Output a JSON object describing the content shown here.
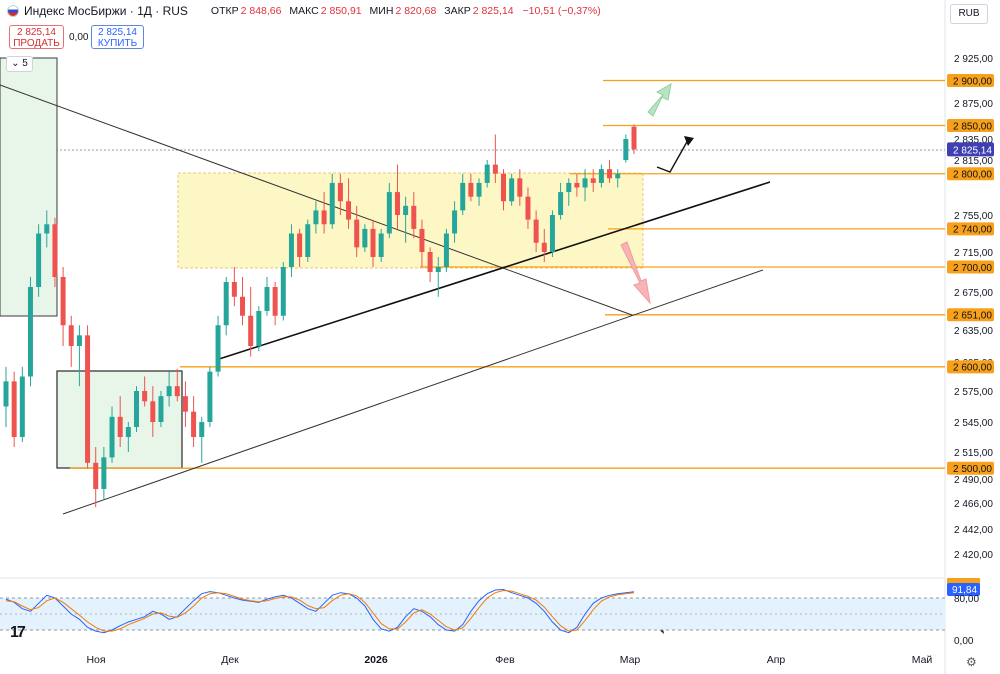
{
  "header": {
    "title": "Индекс МосБиржи · 1Д · RUS",
    "open_label": "ОТКР",
    "open": "2 848,66",
    "high_label": "МАКС",
    "high": "2 850,91",
    "low_label": "МИН",
    "low": "2 820,68",
    "close_label": "ЗАКР",
    "close": "2 825,14",
    "change": "−10,51 (−0,37%)"
  },
  "trade": {
    "sell_price": "2 825,14",
    "sell_label": "ПРОДАТЬ",
    "spread": "0,00",
    "buy_price": "2 825,14",
    "buy_label": "КУПИТЬ"
  },
  "toolbar": {
    "collapse_count": "5",
    "currency": "RUB"
  },
  "colors": {
    "up": "#26a69a",
    "down": "#ef5350",
    "level": "#f7a01c",
    "zone": "#fdf7c6",
    "stoch_k": "#2962ff",
    "stoch_d": "#f57c00"
  },
  "chart_data": {
    "type": "candlestick",
    "price_axis": {
      "ticks": [
        2925,
        2875,
        2835,
        2815,
        2755,
        2715,
        2675,
        2635,
        2605,
        2575,
        2545,
        2515,
        2490,
        2466,
        2442,
        2420
      ],
      "tick_labels": [
        "2 925,00",
        "2 875,00",
        "2 835,00",
        "2 815,00",
        "2 755,00",
        "2 715,00",
        "2 675,00",
        "2 635,00",
        "2 605,00",
        "2 575,00",
        "2 545,00",
        "2 515,00",
        "2 490,00",
        "2 466,00",
        "2 442,00",
        "2 420,00"
      ],
      "ylim": [
        2400,
        2950
      ]
    },
    "time_axis": {
      "labels": [
        "Ноя",
        "Дек",
        "2026",
        "Фев",
        "Мар",
        "Апр",
        "Май"
      ]
    },
    "levels": [
      {
        "value": 2900,
        "label": "2 900,00"
      },
      {
        "value": 2850,
        "label": "2 850,00"
      },
      {
        "value": 2800,
        "label": "2 800,00"
      },
      {
        "value": 2740,
        "label": "2 740,00"
      },
      {
        "value": 2700,
        "label": "2 700,00"
      },
      {
        "value": 2651,
        "label": "2 651,00"
      },
      {
        "value": 2600,
        "label": "2 600,00"
      },
      {
        "value": 2500,
        "label": "2 500,00"
      }
    ],
    "last_price": {
      "value": 2825.14,
      "label": "2 825,14"
    },
    "candles": [
      [
        2560,
        2600,
        2540,
        2585
      ],
      [
        2585,
        2595,
        2520,
        2530
      ],
      [
        2530,
        2600,
        2525,
        2590
      ],
      [
        2590,
        2690,
        2580,
        2680
      ],
      [
        2680,
        2745,
        2670,
        2735
      ],
      [
        2735,
        2760,
        2720,
        2745
      ],
      [
        2745,
        2752,
        2680,
        2690
      ],
      [
        2690,
        2700,
        2620,
        2640
      ],
      [
        2640,
        2650,
        2600,
        2620
      ],
      [
        2620,
        2640,
        2580,
        2630
      ],
      [
        2630,
        2640,
        2500,
        2505
      ],
      [
        2505,
        2520,
        2462,
        2480
      ],
      [
        2480,
        2520,
        2470,
        2510
      ],
      [
        2510,
        2560,
        2505,
        2550
      ],
      [
        2550,
        2570,
        2520,
        2530
      ],
      [
        2530,
        2545,
        2515,
        2540
      ],
      [
        2540,
        2580,
        2535,
        2575
      ],
      [
        2575,
        2590,
        2560,
        2565
      ],
      [
        2565,
        2580,
        2530,
        2545
      ],
      [
        2545,
        2575,
        2540,
        2570
      ],
      [
        2570,
        2595,
        2560,
        2580
      ],
      [
        2580,
        2598,
        2565,
        2570
      ],
      [
        2570,
        2585,
        2540,
        2555
      ],
      [
        2555,
        2570,
        2520,
        2530
      ],
      [
        2530,
        2550,
        2505,
        2545
      ],
      [
        2545,
        2600,
        2540,
        2595
      ],
      [
        2595,
        2650,
        2590,
        2640
      ],
      [
        2640,
        2690,
        2630,
        2685
      ],
      [
        2685,
        2700,
        2660,
        2670
      ],
      [
        2670,
        2690,
        2640,
        2650
      ],
      [
        2650,
        2680,
        2610,
        2620
      ],
      [
        2620,
        2660,
        2615,
        2655
      ],
      [
        2655,
        2690,
        2650,
        2680
      ],
      [
        2680,
        2685,
        2640,
        2650
      ],
      [
        2650,
        2705,
        2645,
        2700
      ],
      [
        2700,
        2745,
        2690,
        2735
      ],
      [
        2735,
        2740,
        2700,
        2710
      ],
      [
        2710,
        2750,
        2705,
        2745
      ],
      [
        2745,
        2770,
        2735,
        2760
      ],
      [
        2760,
        2780,
        2735,
        2745
      ],
      [
        2745,
        2800,
        2740,
        2790
      ],
      [
        2790,
        2800,
        2755,
        2770
      ],
      [
        2770,
        2795,
        2740,
        2750
      ],
      [
        2750,
        2765,
        2710,
        2720
      ],
      [
        2720,
        2745,
        2715,
        2740
      ],
      [
        2740,
        2750,
        2700,
        2710
      ],
      [
        2710,
        2740,
        2705,
        2735
      ],
      [
        2735,
        2790,
        2730,
        2780
      ],
      [
        2780,
        2810,
        2740,
        2755
      ],
      [
        2755,
        2775,
        2725,
        2765
      ],
      [
        2765,
        2780,
        2730,
        2740
      ],
      [
        2740,
        2750,
        2700,
        2715
      ],
      [
        2715,
        2720,
        2685,
        2695
      ],
      [
        2695,
        2710,
        2670,
        2700
      ],
      [
        2700,
        2740,
        2695,
        2735
      ],
      [
        2735,
        2770,
        2725,
        2760
      ],
      [
        2760,
        2800,
        2755,
        2790
      ],
      [
        2790,
        2800,
        2770,
        2775
      ],
      [
        2775,
        2795,
        2765,
        2790
      ],
      [
        2790,
        2815,
        2785,
        2810
      ],
      [
        2810,
        2840,
        2790,
        2800
      ],
      [
        2800,
        2805,
        2760,
        2770
      ],
      [
        2770,
        2800,
        2765,
        2795
      ],
      [
        2795,
        2805,
        2765,
        2775
      ],
      [
        2775,
        2785,
        2740,
        2750
      ],
      [
        2750,
        2760,
        2715,
        2725
      ],
      [
        2725,
        2740,
        2705,
        2715
      ],
      [
        2715,
        2760,
        2710,
        2755
      ],
      [
        2755,
        2790,
        2750,
        2780
      ],
      [
        2780,
        2795,
        2765,
        2790
      ],
      [
        2790,
        2800,
        2775,
        2785
      ],
      [
        2785,
        2805,
        2770,
        2795
      ],
      [
        2795,
        2805,
        2780,
        2790
      ],
      [
        2790,
        2810,
        2785,
        2805
      ],
      [
        2805,
        2815,
        2790,
        2795
      ],
      [
        2795,
        2805,
        2785,
        2800
      ],
      [
        2815,
        2840,
        2812,
        2835
      ],
      [
        2848.66,
        2850.91,
        2820.68,
        2825.14
      ]
    ],
    "oscillator": {
      "type": "stochastic",
      "value_label": "91,84",
      "axis_labels": [
        "80,00",
        "0,00"
      ],
      "ylim": [
        0,
        100
      ],
      "k": [
        78,
        72,
        60,
        55,
        70,
        85,
        80,
        65,
        50,
        40,
        25,
        18,
        15,
        20,
        28,
        35,
        40,
        45,
        55,
        50,
        40,
        45,
        60,
        75,
        88,
        92,
        90,
        85,
        80,
        76,
        74,
        72,
        78,
        82,
        85,
        80,
        70,
        60,
        55,
        70,
        85,
        90,
        88,
        80,
        65,
        40,
        22,
        18,
        25,
        45,
        60,
        55,
        45,
        30,
        20,
        18,
        30,
        55,
        75,
        88,
        95,
        96,
        90,
        85,
        80,
        70,
        55,
        35,
        20,
        15,
        25,
        50,
        70,
        80,
        85,
        88,
        90,
        91.84
      ],
      "d": [
        75,
        73,
        65,
        58,
        62,
        75,
        80,
        72,
        60,
        48,
        35,
        25,
        18,
        18,
        22,
        30,
        36,
        42,
        50,
        52,
        46,
        44,
        52,
        65,
        80,
        88,
        90,
        88,
        83,
        78,
        75,
        73,
        75,
        79,
        82,
        82,
        76,
        66,
        60,
        62,
        75,
        85,
        88,
        84,
        72,
        52,
        32,
        22,
        22,
        35,
        52,
        58,
        50,
        38,
        26,
        20,
        24,
        42,
        62,
        80,
        90,
        94,
        93,
        88,
        83,
        76,
        63,
        45,
        28,
        18,
        20,
        38,
        58,
        74,
        82,
        86,
        88,
        90
      ]
    }
  }
}
